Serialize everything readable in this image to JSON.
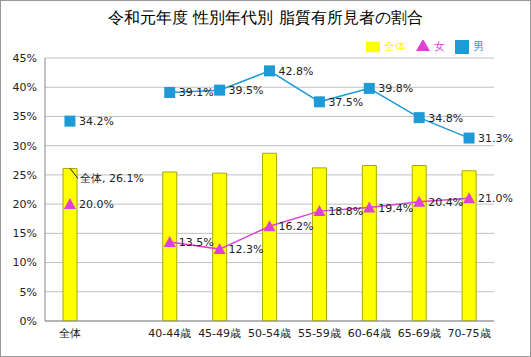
{
  "chart_data": {
    "type": "bar",
    "title": "令和元年度 性別年代別 脂質有所見者の割合",
    "categories": [
      "全体",
      null,
      "40-44歳",
      "45-49歳",
      "50-54歳",
      "55-59歳",
      "60-64歳",
      "65-69歳",
      "70-75歳"
    ],
    "series": [
      {
        "name": "全体",
        "type": "bar",
        "color": "#ffff00",
        "values": [
          26.1,
          null,
          25.5,
          25.3,
          28.7,
          26.2,
          26.6,
          26.6,
          25.7
        ]
      },
      {
        "name": "男",
        "type": "line",
        "color": "#1e9bd7",
        "marker": "square",
        "data_labels": true,
        "values": [
          34.2,
          null,
          39.1,
          39.5,
          42.8,
          37.5,
          39.8,
          34.8,
          31.3
        ],
        "value_labels": [
          "34.2%",
          null,
          "39.1%",
          "39.5%",
          "42.8%",
          "37.5%",
          "39.8%",
          "34.8%",
          "31.3%"
        ]
      },
      {
        "name": "女",
        "type": "line",
        "color": "#e040d8",
        "marker": "triangle",
        "data_labels": true,
        "values": [
          20.0,
          null,
          13.5,
          12.3,
          16.2,
          18.8,
          19.4,
          20.4,
          21.0
        ],
        "value_labels": [
          "20.0%",
          null,
          "13.5%",
          "12.3%",
          "16.2%",
          "18.8%",
          "19.4%",
          "20.4%",
          "21.0%"
        ]
      }
    ],
    "annotations": [
      {
        "text": "全体, 26.1%",
        "category": "全体",
        "series": "全体"
      }
    ],
    "ylim": [
      0,
      45
    ],
    "yticks": [
      {
        "value": 0,
        "label": "0%"
      },
      {
        "value": 5,
        "label": "5%"
      },
      {
        "value": 10,
        "label": "10%"
      },
      {
        "value": 15,
        "label": "15%"
      },
      {
        "value": 20,
        "label": "20%"
      },
      {
        "value": 25,
        "label": "25%"
      },
      {
        "value": 30,
        "label": "30%"
      },
      {
        "value": 35,
        "label": "35%"
      },
      {
        "value": 40,
        "label": "40%"
      },
      {
        "value": 45,
        "label": "45%"
      }
    ],
    "grid": true,
    "legend": "top-right"
  }
}
